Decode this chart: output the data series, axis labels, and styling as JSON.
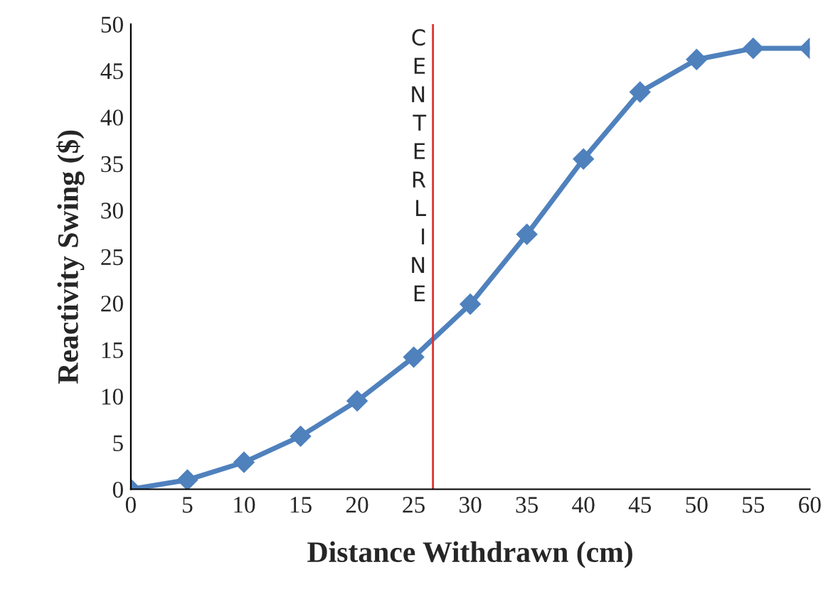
{
  "chart_data": {
    "type": "line",
    "xlabel": "Distance Withdrawn (cm)",
    "ylabel": "Reactivity Swing ($)",
    "x": [
      0,
      5,
      10,
      15,
      20,
      25,
      30,
      35,
      40,
      45,
      50,
      55,
      60
    ],
    "series": [
      {
        "color": "#4f81bd",
        "values": [
          0,
          1.0,
          2.9,
          5.7,
          9.5,
          14.2,
          19.9,
          27.4,
          35.5,
          42.7,
          46.2,
          47.4,
          47.4
        ]
      }
    ],
    "xlim": [
      0,
      60
    ],
    "xticks": [
      0,
      5,
      10,
      15,
      20,
      25,
      30,
      35,
      40,
      45,
      50,
      55,
      60
    ],
    "ylim": [
      0,
      50
    ],
    "yticks": [
      0,
      5,
      10,
      15,
      20,
      25,
      30,
      35,
      40,
      45,
      50
    ],
    "ref_lines": [
      {
        "axis": "x",
        "value": 26.7,
        "label": "CENTERLINE",
        "color": "#e03030"
      }
    ],
    "marker": "diamond",
    "line_style": "solid",
    "grid": false,
    "legend": false
  }
}
